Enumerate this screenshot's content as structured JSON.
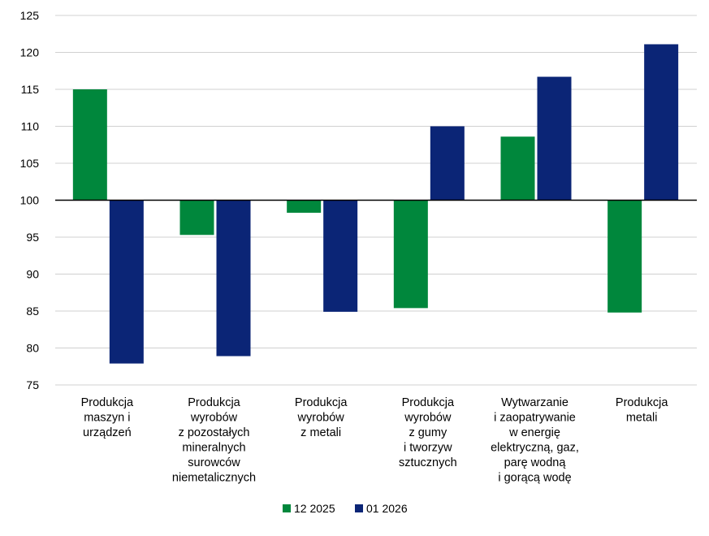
{
  "chart_data": {
    "type": "bar",
    "title": "",
    "xlabel": "",
    "ylabel": "",
    "ylim": [
      75,
      125
    ],
    "yticks": [
      75,
      80,
      85,
      90,
      95,
      100,
      105,
      110,
      115,
      120,
      125
    ],
    "baseline": 100,
    "grid": true,
    "legend_position": "bottom",
    "categories": [
      [
        "Produkcja",
        "maszyn i",
        "urządzeń"
      ],
      [
        "Produkcja",
        "wyrobów",
        "z pozostałych",
        "mineralnych",
        "surowców",
        "niemetalicznych"
      ],
      [
        "Produkcja",
        "wyrobów",
        "z metali"
      ],
      [
        "Produkcja",
        "wyrobów",
        "z gumy",
        "i tworzyw",
        "sztucznych"
      ],
      [
        "Wytwarzanie",
        "i zaopatrywanie",
        "w energię",
        "elektryczną, gaz,",
        "parę wodną",
        "i gorącą wodę"
      ],
      [
        "Produkcja",
        "metali"
      ]
    ],
    "series": [
      {
        "name": "12 2025",
        "color": "#00873c",
        "values": [
          115.0,
          95.3,
          98.3,
          85.4,
          108.6,
          84.8
        ]
      },
      {
        "name": "01 2026",
        "color": "#0b2576",
        "values": [
          77.9,
          78.9,
          84.9,
          110.0,
          116.7,
          121.1
        ]
      }
    ]
  }
}
